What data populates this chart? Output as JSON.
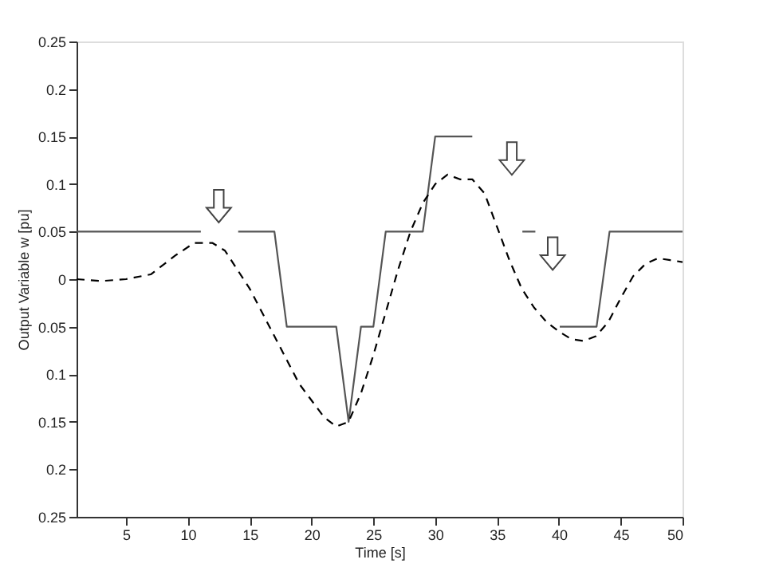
{
  "chart_data": {
    "type": "line",
    "xlabel": "Time [s]",
    "ylabel": "Output Variable  w [pu]",
    "xlim": [
      1,
      50
    ],
    "ylim": [
      -0.25,
      0.25
    ],
    "xticks": [
      5,
      10,
      15,
      20,
      25,
      30,
      35,
      40,
      45,
      50
    ],
    "yticks": [
      {
        "value": -0.25,
        "label": "0.25"
      },
      {
        "value": -0.2,
        "label": "0.2"
      },
      {
        "value": -0.15,
        "label": "0.15"
      },
      {
        "value": -0.1,
        "label": "0.1"
      },
      {
        "value": -0.05,
        "label": "0.05"
      },
      0,
      0.05,
      0.1,
      0.15,
      0.2,
      0.25
    ],
    "grid": false,
    "marker": "none",
    "series": [
      {
        "color": "#555555",
        "line_style": "solid",
        "x": [
          1,
          11.05,
          12.5,
          14.07,
          17,
          18,
          22,
          23,
          24,
          25,
          26,
          29,
          30,
          33,
          36.2,
          37.05,
          38.1,
          39.5,
          40.07,
          43.05,
          44.1,
          50
        ],
        "values": [
          0.05,
          0.05,
          null,
          0.05,
          0.05,
          -0.05,
          -0.05,
          -0.15,
          -0.05,
          -0.05,
          0.05,
          0.05,
          0.15,
          0.15,
          null,
          0.05,
          0.05,
          null,
          -0.05,
          -0.05,
          0.05,
          0.05
        ]
      },
      {
        "color": "#000000",
        "line_style": "dashed",
        "x": [
          1,
          3,
          5,
          7,
          9,
          10.5,
          12,
          13,
          15,
          17,
          19,
          21,
          22,
          23,
          24,
          25,
          26,
          27,
          28,
          29,
          30,
          31,
          32,
          33,
          34,
          35,
          36,
          37,
          38,
          39,
          40,
          41,
          42,
          43,
          44,
          45,
          46,
          47,
          48,
          49,
          50
        ],
        "values": [
          0,
          -0.002,
          0,
          0.005,
          0.025,
          0.038,
          0.038,
          0.03,
          -0.01,
          -0.06,
          -0.11,
          -0.145,
          -0.155,
          -0.15,
          -0.12,
          -0.08,
          -0.035,
          0.01,
          0.05,
          0.08,
          0.1,
          0.11,
          0.105,
          0.105,
          0.09,
          0.055,
          0.02,
          -0.01,
          -0.03,
          -0.045,
          -0.055,
          -0.063,
          -0.065,
          -0.06,
          -0.045,
          -0.02,
          0.003,
          0.016,
          0.022,
          0.02,
          0.018
        ]
      }
    ]
  }
}
